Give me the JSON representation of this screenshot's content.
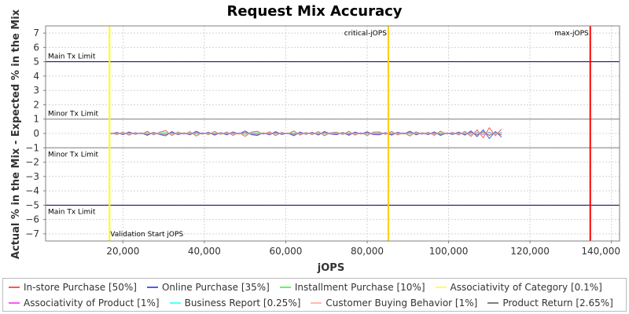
{
  "chart_data": {
    "type": "line",
    "title": "Request Mix Accuracy",
    "xlabel": "jOPS",
    "ylabel": "Actual % in the Mix - Expected % in the Mix",
    "xlim": [
      1000,
      142000
    ],
    "ylim": [
      -7.5,
      7.5
    ],
    "x_ticks": [
      20000,
      40000,
      60000,
      80000,
      100000,
      120000,
      140000
    ],
    "x_tick_labels": [
      "20,000",
      "40,000",
      "60,000",
      "80,000",
      "100,000",
      "120,000",
      "140,000"
    ],
    "y_ticks": [
      7,
      6,
      5,
      4,
      3,
      2,
      1,
      0,
      -1,
      -2,
      -3,
      -4,
      -5,
      -6,
      -7
    ],
    "y_tick_labels": [
      "7",
      "6",
      "5",
      "4",
      "3",
      "2",
      "1",
      "0",
      "−1",
      "−2",
      "−3",
      "−4",
      "−5",
      "−6",
      "−7"
    ],
    "grid": true,
    "legend_position": "bottom",
    "threshold_lines": [
      {
        "label": "Main Tx Limit",
        "y": 5,
        "color": "#000066"
      },
      {
        "label": "Minor Tx Limit",
        "y": 1,
        "color": "#808080"
      },
      {
        "label": "Minor Tx Limit",
        "y": -1,
        "color": "#808080"
      },
      {
        "label": "Main Tx Limit",
        "y": -5,
        "color": "#000066"
      }
    ],
    "markers": [
      {
        "label": "Validation Start jOPS",
        "x": 16700,
        "color": "#ffff00"
      },
      {
        "label": "critical-jOPS",
        "x": 85200,
        "color": "#ffcc00"
      },
      {
        "label": "max-jOPS",
        "x": 134800,
        "color": "#ff0000"
      }
    ],
    "series": [
      {
        "name": "In-store Purchase [50%]",
        "color": "#ff5555",
        "x_start": 17000,
        "x_step": 1500,
        "values": [
          0.05,
          -0.08,
          0.1,
          -0.12,
          0.07,
          -0.05,
          0.15,
          -0.1,
          0.08,
          0.2,
          -0.15,
          0.1,
          -0.05,
          0.12,
          -0.18,
          0.06,
          -0.09,
          0.14,
          -0.07,
          0.11,
          -0.13,
          0.05,
          -0.2,
          0.09,
          0.16,
          -0.06,
          0.12,
          -0.15,
          0.08,
          -0.04,
          0.18,
          -0.11,
          0.07,
          -0.09,
          0.13,
          -0.16,
          0.05,
          0.1,
          -0.08,
          0.15,
          -0.12,
          0.06,
          -0.14,
          0.09,
          0.11,
          -0.07,
          0.14,
          -0.1,
          0.05,
          -0.18,
          0.12,
          -0.06,
          0.09,
          -0.13,
          0.16,
          -0.05,
          0.08,
          -0.11,
          0.14,
          -0.2,
          0.25,
          -0.3,
          0.4,
          -0.15,
          0.3
        ]
      },
      {
        "name": "Online Purchase [35%]",
        "color": "#5555ff",
        "x_start": 17000,
        "x_step": 1500,
        "values": [
          -0.04,
          0.07,
          -0.09,
          0.11,
          -0.06,
          0.04,
          -0.13,
          0.08,
          -0.07,
          -0.17,
          0.13,
          -0.09,
          0.04,
          -0.1,
          0.16,
          -0.05,
          0.08,
          -0.12,
          0.06,
          -0.1,
          0.11,
          -0.04,
          0.18,
          -0.08,
          -0.14,
          0.05,
          -0.1,
          0.13,
          -0.07,
          0.03,
          -0.16,
          0.1,
          -0.06,
          0.08,
          -0.11,
          0.14,
          -0.04,
          -0.09,
          0.07,
          -0.13,
          0.1,
          -0.05,
          0.12,
          -0.08,
          -0.1,
          0.06,
          -0.12,
          0.09,
          -0.04,
          0.16,
          -0.1,
          0.05,
          -0.08,
          0.11,
          -0.14,
          0.04,
          -0.07,
          0.1,
          -0.12,
          0.18,
          -0.22,
          0.26,
          -0.35,
          0.13,
          -0.26
        ]
      },
      {
        "name": "Installment Purchase [10%]",
        "color": "#55ff55",
        "x_start": 17000,
        "x_step": 1500,
        "values": [
          0.02,
          -0.03,
          0.04,
          -0.05,
          0.03,
          -0.02,
          0.06,
          -0.04,
          0.03,
          0.07,
          -0.05,
          0.04,
          -0.02,
          0.05,
          -0.06,
          0.02,
          -0.04,
          0.05,
          -0.03,
          0.04,
          -0.05,
          0.02,
          -0.07,
          0.03,
          0.06,
          -0.02,
          0.04,
          -0.05,
          0.03,
          -0.02,
          0.06,
          -0.04,
          0.03,
          -0.03,
          0.05,
          -0.06,
          0.02,
          0.04,
          -0.03,
          0.05,
          -0.04,
          0.02,
          -0.05,
          0.03,
          0.04,
          -0.03,
          0.05,
          -0.04,
          0.02,
          -0.06,
          0.04,
          -0.02,
          0.03,
          -0.05,
          0.06,
          -0.02,
          0.03,
          -0.04,
          0.05,
          -0.07,
          0.08,
          -0.09,
          0.1,
          -0.05,
          0.08
        ]
      },
      {
        "name": "Associativity of Category [0.1%]",
        "color": "#ffff55",
        "x_start": 17000,
        "x_step": 1500,
        "values": [
          0.01,
          0.0,
          -0.01,
          0.01,
          0.0,
          -0.01,
          0.01,
          0.0,
          -0.01,
          0.01,
          0.0,
          -0.01,
          0.01,
          0.0,
          -0.01,
          0.01,
          0.0,
          -0.01,
          0.01,
          0.0,
          -0.01,
          0.01,
          0.0,
          -0.01,
          0.01,
          0.0,
          -0.01,
          0.01,
          0.0,
          -0.01,
          0.01,
          0.0,
          -0.01,
          0.01,
          0.0,
          -0.01,
          0.01,
          0.0,
          -0.01,
          0.01,
          0.0,
          -0.01,
          0.01,
          0.0,
          -0.01,
          0.01,
          0.0,
          -0.01,
          0.01,
          0.0,
          -0.01,
          0.01,
          0.0,
          -0.01,
          0.01,
          0.0,
          -0.01,
          0.01,
          0.0,
          -0.01,
          0.01,
          0.0,
          -0.01,
          0.01,
          0.0
        ]
      },
      {
        "name": "Associativity of Product [1%]",
        "color": "#ff55ff",
        "x_start": 17000,
        "x_step": 1500,
        "values": [
          0.03,
          -0.02,
          0.02,
          -0.03,
          0.04,
          -0.02,
          0.03,
          -0.04,
          0.02,
          0.03,
          -0.03,
          0.02,
          -0.04,
          0.03,
          -0.02,
          0.04,
          -0.03,
          0.02,
          -0.02,
          0.03,
          -0.04,
          0.02,
          -0.03,
          0.04,
          0.02,
          -0.03,
          0.03,
          -0.02,
          0.04,
          -0.03,
          0.02,
          -0.04,
          0.03,
          -0.02,
          0.02,
          -0.03,
          0.04,
          0.02,
          -0.03,
          0.03,
          -0.02,
          0.04,
          -0.03,
          0.02,
          0.03,
          -0.04,
          0.02,
          -0.03,
          0.04,
          -0.02,
          0.03,
          -0.03,
          0.02,
          -0.04,
          0.03,
          -0.02,
          0.04,
          -0.03,
          0.02,
          -0.05,
          0.06,
          -0.07,
          0.08,
          -0.04,
          0.06
        ]
      },
      {
        "name": "Business Report [0.25%]",
        "color": "#55ffff",
        "x_start": 17000,
        "x_step": 1500,
        "values": [
          0.01,
          -0.01,
          0.02,
          -0.01,
          0.01,
          -0.02,
          0.01,
          -0.01,
          0.02,
          0.01,
          -0.01,
          0.02,
          -0.01,
          0.01,
          -0.02,
          0.01,
          -0.01,
          0.02,
          -0.01,
          0.01,
          -0.02,
          0.01,
          -0.01,
          0.02,
          0.01,
          -0.01,
          0.02,
          -0.01,
          0.01,
          -0.02,
          0.01,
          -0.01,
          0.02,
          -0.01,
          0.01,
          -0.02,
          0.01,
          0.01,
          -0.01,
          0.02,
          -0.01,
          0.01,
          -0.02,
          0.01,
          0.01,
          -0.01,
          0.02,
          -0.01,
          0.01,
          -0.02,
          0.01,
          -0.01,
          0.02,
          -0.01,
          0.01,
          -0.02,
          0.01,
          -0.01,
          0.02,
          -0.02,
          0.03,
          -0.03,
          0.04,
          -0.02,
          0.03
        ]
      },
      {
        "name": "Customer Buying Behavior [1%]",
        "color": "#ffbbaa",
        "x_start": 17000,
        "x_step": 1500,
        "values": [
          -0.02,
          0.03,
          -0.03,
          0.02,
          -0.04,
          0.03,
          -0.02,
          0.04,
          -0.03,
          -0.02,
          0.03,
          -0.04,
          0.02,
          -0.03,
          0.04,
          -0.02,
          0.03,
          -0.02,
          0.04,
          -0.03,
          0.02,
          -0.04,
          0.03,
          -0.02,
          -0.03,
          0.04,
          -0.02,
          0.03,
          -0.03,
          0.02,
          -0.04,
          0.03,
          -0.02,
          0.04,
          -0.03,
          0.02,
          -0.03,
          -0.02,
          0.04,
          -0.03,
          0.02,
          -0.03,
          0.04,
          -0.02,
          -0.03,
          0.03,
          -0.02,
          0.04,
          -0.03,
          0.02,
          -0.04,
          0.03,
          -0.02,
          0.03,
          -0.04,
          0.02,
          -0.03,
          0.04,
          -0.02,
          0.05,
          -0.06,
          0.07,
          -0.08,
          0.04,
          -0.06
        ]
      },
      {
        "name": "Product Return [2.65%]",
        "color": "#808080",
        "x_start": 17000,
        "x_step": 1500,
        "values": [
          -0.03,
          0.04,
          -0.05,
          0.06,
          -0.04,
          0.03,
          -0.07,
          0.05,
          -0.04,
          -0.08,
          0.06,
          -0.05,
          0.03,
          -0.06,
          0.07,
          -0.03,
          0.05,
          -0.06,
          0.04,
          -0.05,
          0.06,
          -0.03,
          0.08,
          -0.04,
          -0.07,
          0.03,
          -0.05,
          0.06,
          -0.04,
          0.02,
          -0.07,
          0.05,
          -0.03,
          0.04,
          -0.06,
          0.07,
          -0.03,
          -0.05,
          0.04,
          -0.06,
          0.05,
          -0.03,
          0.06,
          -0.04,
          -0.05,
          0.04,
          -0.06,
          0.05,
          -0.03,
          0.07,
          -0.05,
          0.03,
          -0.04,
          0.06,
          -0.07,
          0.03,
          -0.04,
          0.05,
          -0.06,
          0.09,
          -0.1,
          0.12,
          -0.14,
          0.07,
          -0.11
        ]
      }
    ]
  }
}
